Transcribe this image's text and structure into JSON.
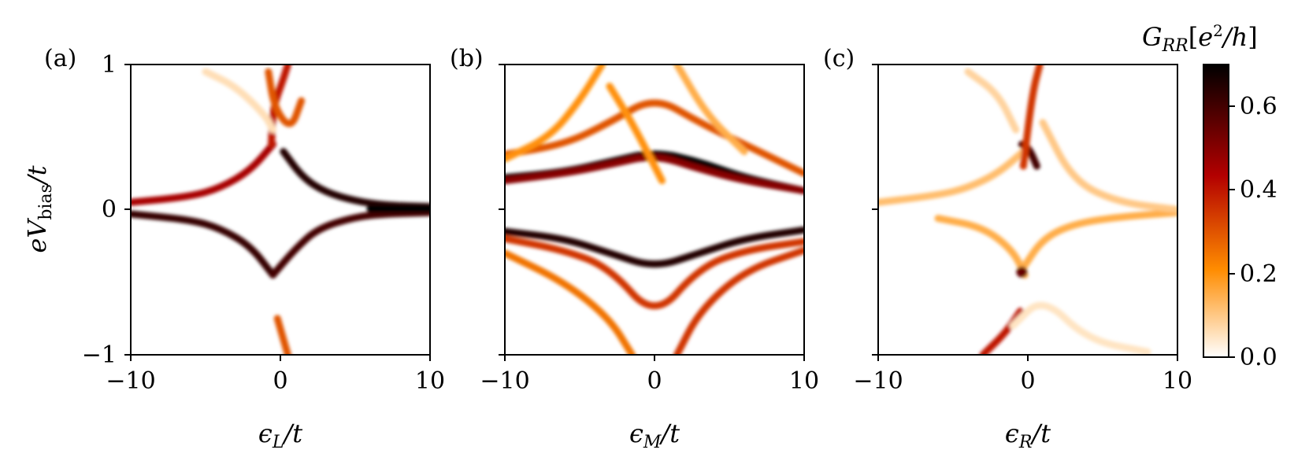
{
  "chart_data": [
    {
      "type": "heatmap",
      "panel_label": "(a)",
      "xlabel": "ϵL/t",
      "ylabel": "eVbias/t",
      "xlim": [
        -10,
        10
      ],
      "ylim": [
        -1,
        1
      ],
      "xticks": [
        "−10",
        "0",
        "10"
      ],
      "yticks": [
        "−1",
        "0",
        "1"
      ],
      "resonance_lines": [
        {
          "x": [
            -10,
            -6,
            -4,
            -2,
            -0.5
          ],
          "y": [
            0.05,
            0.09,
            0.15,
            0.27,
            0.45
          ],
          "intensity": 0.45
        },
        {
          "x": [
            0.2,
            1.5,
            3,
            5,
            7,
            10
          ],
          "y": [
            0.4,
            0.22,
            0.12,
            0.06,
            0.03,
            0.02
          ],
          "intensity": 0.65
        },
        {
          "x": [
            -10,
            -6,
            -4,
            -2,
            -0.5
          ],
          "y": [
            -0.03,
            -0.07,
            -0.13,
            -0.25,
            -0.45
          ],
          "intensity": 0.62
        },
        {
          "x": [
            -0.5,
            1,
            2.5,
            5,
            7,
            10
          ],
          "y": [
            -0.45,
            -0.27,
            -0.13,
            -0.05,
            -0.03,
            -0.02
          ],
          "intensity": 0.6
        },
        {
          "x": [
            6,
            10
          ],
          "y": [
            0.005,
            0.005
          ],
          "intensity": 0.7
        },
        {
          "x": [
            -0.6,
            -0.5,
            0.2,
            0.5
          ],
          "y": [
            0.45,
            0.7,
            0.9,
            1.0
          ],
          "intensity": 0.4
        },
        {
          "x": [
            -0.8,
            -0.4,
            0.7,
            1.4
          ],
          "y": [
            0.95,
            0.7,
            0.55,
            0.75
          ],
          "intensity": 0.3
        },
        {
          "x": [
            -0.2,
            0.5
          ],
          "y": [
            -0.75,
            -1.0
          ],
          "intensity": 0.3
        },
        {
          "x": [
            -5,
            -3,
            -1,
            -0.5
          ],
          "y": [
            0.95,
            0.85,
            0.65,
            0.55
          ],
          "intensity": 0.06
        }
      ]
    },
    {
      "type": "heatmap",
      "panel_label": "(b)",
      "xlabel": "ϵM/t",
      "ylabel": "",
      "xlim": [
        -10,
        10
      ],
      "ylim": [
        -1,
        1
      ],
      "xticks": [
        "−10",
        "0",
        "10"
      ],
      "yticks": [],
      "resonance_lines": [
        {
          "x": [
            -10,
            -6,
            -3,
            0,
            3,
            6,
            10
          ],
          "y": [
            0.22,
            0.26,
            0.33,
            0.4,
            0.33,
            0.22,
            0.13
          ],
          "intensity": 0.7
        },
        {
          "x": [
            -10,
            -6,
            -3,
            0,
            3,
            6,
            10
          ],
          "y": [
            0.2,
            0.25,
            0.31,
            0.38,
            0.28,
            0.2,
            0.13
          ],
          "intensity": 0.5
        },
        {
          "x": [
            -10,
            -6,
            -3,
            0,
            3,
            6,
            10
          ],
          "y": [
            -0.15,
            -0.2,
            -0.3,
            -0.4,
            -0.3,
            -0.2,
            -0.14
          ],
          "intensity": 0.65
        },
        {
          "x": [
            -10,
            -6,
            -3,
            0,
            3,
            6,
            10
          ],
          "y": [
            -0.2,
            -0.28,
            -0.4,
            -0.75,
            -0.4,
            -0.28,
            -0.22
          ],
          "intensity": 0.35
        },
        {
          "x": [
            -10,
            -6,
            -3,
            0,
            3,
            6,
            10
          ],
          "y": [
            0.38,
            0.45,
            0.6,
            0.78,
            0.6,
            0.45,
            0.25
          ],
          "intensity": 0.3
        },
        {
          "x": [
            -10,
            -6,
            -3,
            -1.5
          ],
          "y": [
            -0.3,
            -0.5,
            -0.75,
            -1.0
          ],
          "intensity": 0.25
        },
        {
          "x": [
            1.5,
            3,
            6,
            10
          ],
          "y": [
            -1.0,
            -0.7,
            -0.42,
            -0.28
          ],
          "intensity": 0.35
        },
        {
          "x": [
            -3,
            -1.5,
            0.5
          ],
          "y": [
            0.85,
            0.6,
            0.2
          ],
          "intensity": 0.2
        },
        {
          "x": [
            -10,
            -7,
            -5,
            -3.5
          ],
          "y": [
            0.35,
            0.5,
            0.75,
            1.0
          ],
          "intensity": 0.2
        },
        {
          "x": [
            1.5,
            3.5,
            6
          ],
          "y": [
            1.0,
            0.65,
            0.4
          ],
          "intensity": 0.15
        }
      ]
    },
    {
      "type": "heatmap",
      "panel_label": "(c)",
      "xlabel": "ϵR/t",
      "ylabel": "",
      "xlim": [
        -10,
        10
      ],
      "ylim": [
        -1,
        1
      ],
      "xticks": [
        "−10",
        "0",
        "10"
      ],
      "yticks": [],
      "resonance_lines": [
        {
          "x": [
            -10,
            -6,
            -4,
            -2,
            -0.3
          ],
          "y": [
            0.05,
            0.1,
            0.15,
            0.25,
            0.4
          ],
          "intensity": 0.12
        },
        {
          "x": [
            -0.4,
            0.1,
            0.6
          ],
          "y": [
            0.45,
            0.42,
            0.3
          ],
          "intensity": 0.6
        },
        {
          "x": [
            -0.3,
            0.3,
            0.8
          ],
          "y": [
            0.3,
            0.8,
            1.0
          ],
          "intensity": 0.35
        },
        {
          "x": [
            -0.3,
            1,
            3,
            6,
            10
          ],
          "y": [
            -0.4,
            -0.2,
            -0.1,
            -0.05,
            -0.02
          ],
          "intensity": 0.15
        },
        {
          "x": [
            -6,
            -3,
            -1,
            -0.2
          ],
          "y": [
            -0.06,
            -0.12,
            -0.28,
            -0.45
          ],
          "intensity": 0.15
        },
        {
          "x": [
            -0.4
          ],
          "y": [
            -0.43
          ],
          "intensity": 0.55
        },
        {
          "x": [
            -3,
            -1.5,
            -0.5
          ],
          "y": [
            -1.0,
            -0.85,
            -0.7
          ],
          "intensity": 0.4
        },
        {
          "x": [
            -4,
            -2,
            -0.8
          ],
          "y": [
            0.95,
            0.8,
            0.55
          ],
          "intensity": 0.08
        },
        {
          "x": [
            1,
            3,
            6,
            10
          ],
          "y": [
            0.6,
            0.2,
            0.05,
            0.0
          ],
          "intensity": 0.1
        },
        {
          "x": [
            -1,
            1,
            4,
            8
          ],
          "y": [
            -0.8,
            -0.6,
            -0.9,
            -0.98
          ],
          "intensity": 0.05
        }
      ]
    },
    {
      "type": "colorbar",
      "label": "GRR[e2/h]",
      "colormap": "gist_heat_r",
      "range": [
        0,
        0.7
      ],
      "ticks": [
        "0.0",
        "0.2",
        "0.4",
        "0.6"
      ],
      "colors": [
        "#ffffff",
        "#ff8c00",
        "#b30000",
        "#000000"
      ]
    }
  ]
}
